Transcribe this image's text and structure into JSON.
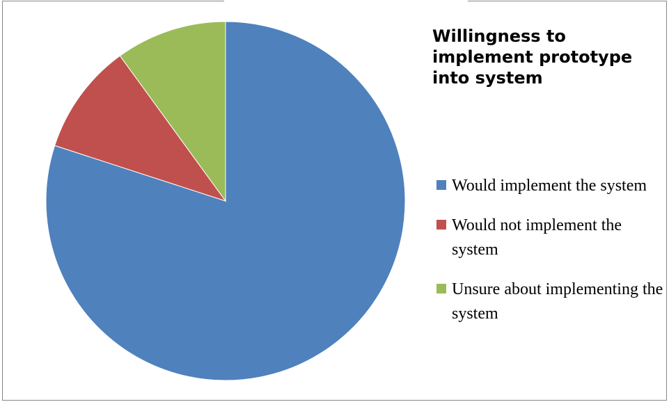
{
  "chart_data": {
    "type": "pie",
    "title": "Willingness to implement prototype into system",
    "slices": [
      {
        "label": "Would implement the system",
        "value": 80,
        "color": "#4f81bd"
      },
      {
        "label": "Would not implement the system",
        "value": 10,
        "color": "#c0504d"
      },
      {
        "label": "Unsure about implementing the system",
        "value": 10,
        "color": "#9bbb59"
      }
    ],
    "legend_position": "right",
    "start_angle": "12 o'clock",
    "direction": "clockwise"
  }
}
